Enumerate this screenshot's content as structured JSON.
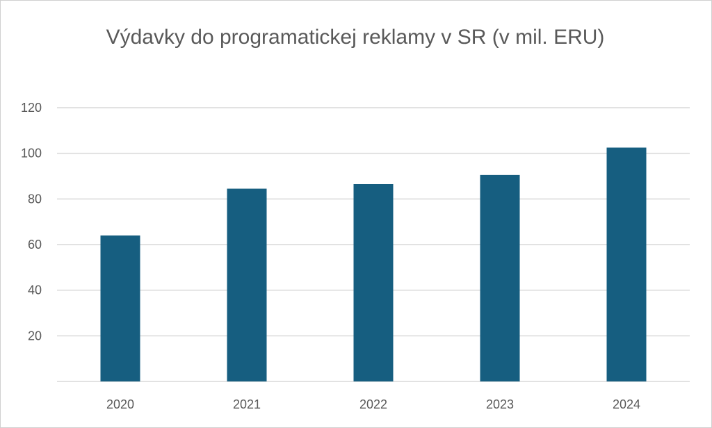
{
  "chart_data": {
    "type": "bar",
    "title": "Výdavky do programatickej reklamy v SR (v mil. ERU)",
    "categories": [
      "2020",
      "2021",
      "2022",
      "2023",
      "2024"
    ],
    "values": [
      64,
      84.5,
      86.5,
      90.5,
      102.5
    ],
    "xlabel": "",
    "ylabel": "",
    "ylim": [
      0,
      120
    ],
    "yticks": [
      20,
      40,
      60,
      80,
      100,
      120
    ],
    "grid": true,
    "colors": {
      "bar": "#165E80",
      "grid": "#d9d9d9",
      "text": "#595959"
    }
  }
}
